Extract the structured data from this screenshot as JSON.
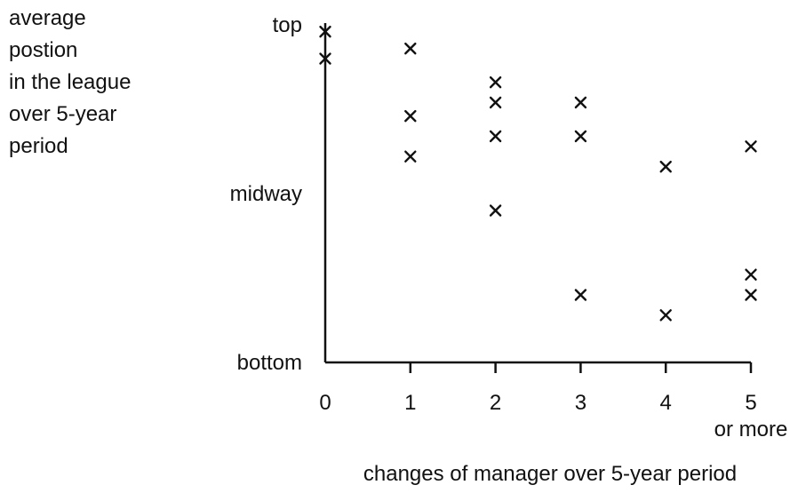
{
  "chart_data": {
    "type": "scatter",
    "ylabel_lines": [
      "average",
      "postion",
      "in the league",
      "over 5-year",
      "period"
    ],
    "xlabel": "changes of manager over 5-year period",
    "x_ticks": [
      {
        "value": 0,
        "label": "0"
      },
      {
        "value": 1,
        "label": "1"
      },
      {
        "value": 2,
        "label": "2"
      },
      {
        "value": 3,
        "label": "3"
      },
      {
        "value": 4,
        "label": "4"
      },
      {
        "value": 5,
        "label": "5"
      }
    ],
    "x_tick_last_sublabel": "or more",
    "y_ticks": [
      {
        "value": 0,
        "label": "bottom"
      },
      {
        "value": 0.5,
        "label": "midway"
      },
      {
        "value": 1,
        "label": "top"
      }
    ],
    "xlim": [
      0,
      5
    ],
    "ylim": [
      0,
      1
    ],
    "marker": "x",
    "grid": false,
    "points": [
      {
        "x": 0,
        "y": 0.98
      },
      {
        "x": 0,
        "y": 0.9
      },
      {
        "x": 1,
        "y": 0.93
      },
      {
        "x": 1,
        "y": 0.73
      },
      {
        "x": 1,
        "y": 0.61
      },
      {
        "x": 2,
        "y": 0.83
      },
      {
        "x": 2,
        "y": 0.77
      },
      {
        "x": 2,
        "y": 0.67
      },
      {
        "x": 2,
        "y": 0.45
      },
      {
        "x": 3,
        "y": 0.77
      },
      {
        "x": 3,
        "y": 0.67
      },
      {
        "x": 3,
        "y": 0.2
      },
      {
        "x": 4,
        "y": 0.58
      },
      {
        "x": 4,
        "y": 0.14
      },
      {
        "x": 5,
        "y": 0.64
      },
      {
        "x": 5,
        "y": 0.26
      },
      {
        "x": 5,
        "y": 0.2
      }
    ]
  }
}
